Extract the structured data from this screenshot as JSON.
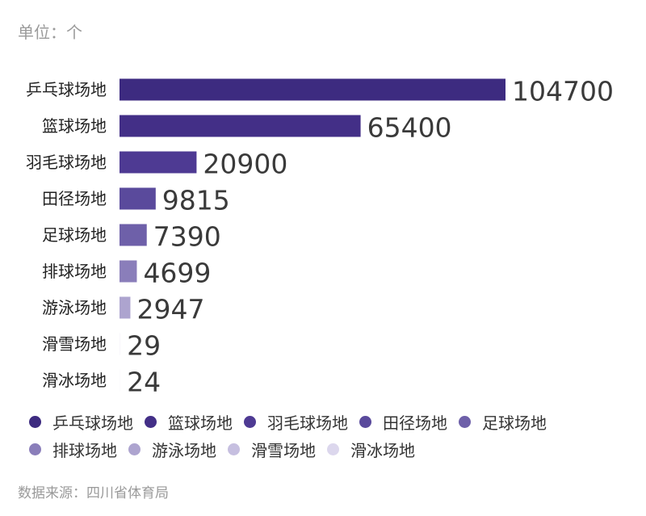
{
  "unit_label": "单位：个",
  "source_label": "数据来源：四川省体育局",
  "chart_data": {
    "type": "bar",
    "orientation": "horizontal",
    "categories": [
      "乒乓球场地",
      "篮球场地",
      "羽毛球场地",
      "田径场地",
      "足球场地",
      "排球场地",
      "游泳场地",
      "滑雪场地",
      "滑冰场地"
    ],
    "values": [
      104700,
      65400,
      20900,
      9815,
      7390,
      4699,
      2947,
      29,
      24
    ],
    "value_labels": [
      "104700",
      "65400",
      "20900",
      "9815",
      "7390",
      "4699",
      "2947",
      "29",
      "24"
    ],
    "colors": [
      "#3d2b80",
      "#432f87",
      "#4e3a93",
      "#5a4a9c",
      "#6e60a9",
      "#8a7eba",
      "#ada4cf",
      "#c6bfe0",
      "#dcd7ed"
    ],
    "xlim": [
      0,
      104700
    ],
    "grid": false,
    "legend": {
      "position": "bottom",
      "entries": [
        "乒乓球场地",
        "篮球场地",
        "羽毛球场地",
        "田径场地",
        "足球场地",
        "排球场地",
        "游泳场地",
        "滑雪场地",
        "滑冰场地"
      ]
    }
  }
}
